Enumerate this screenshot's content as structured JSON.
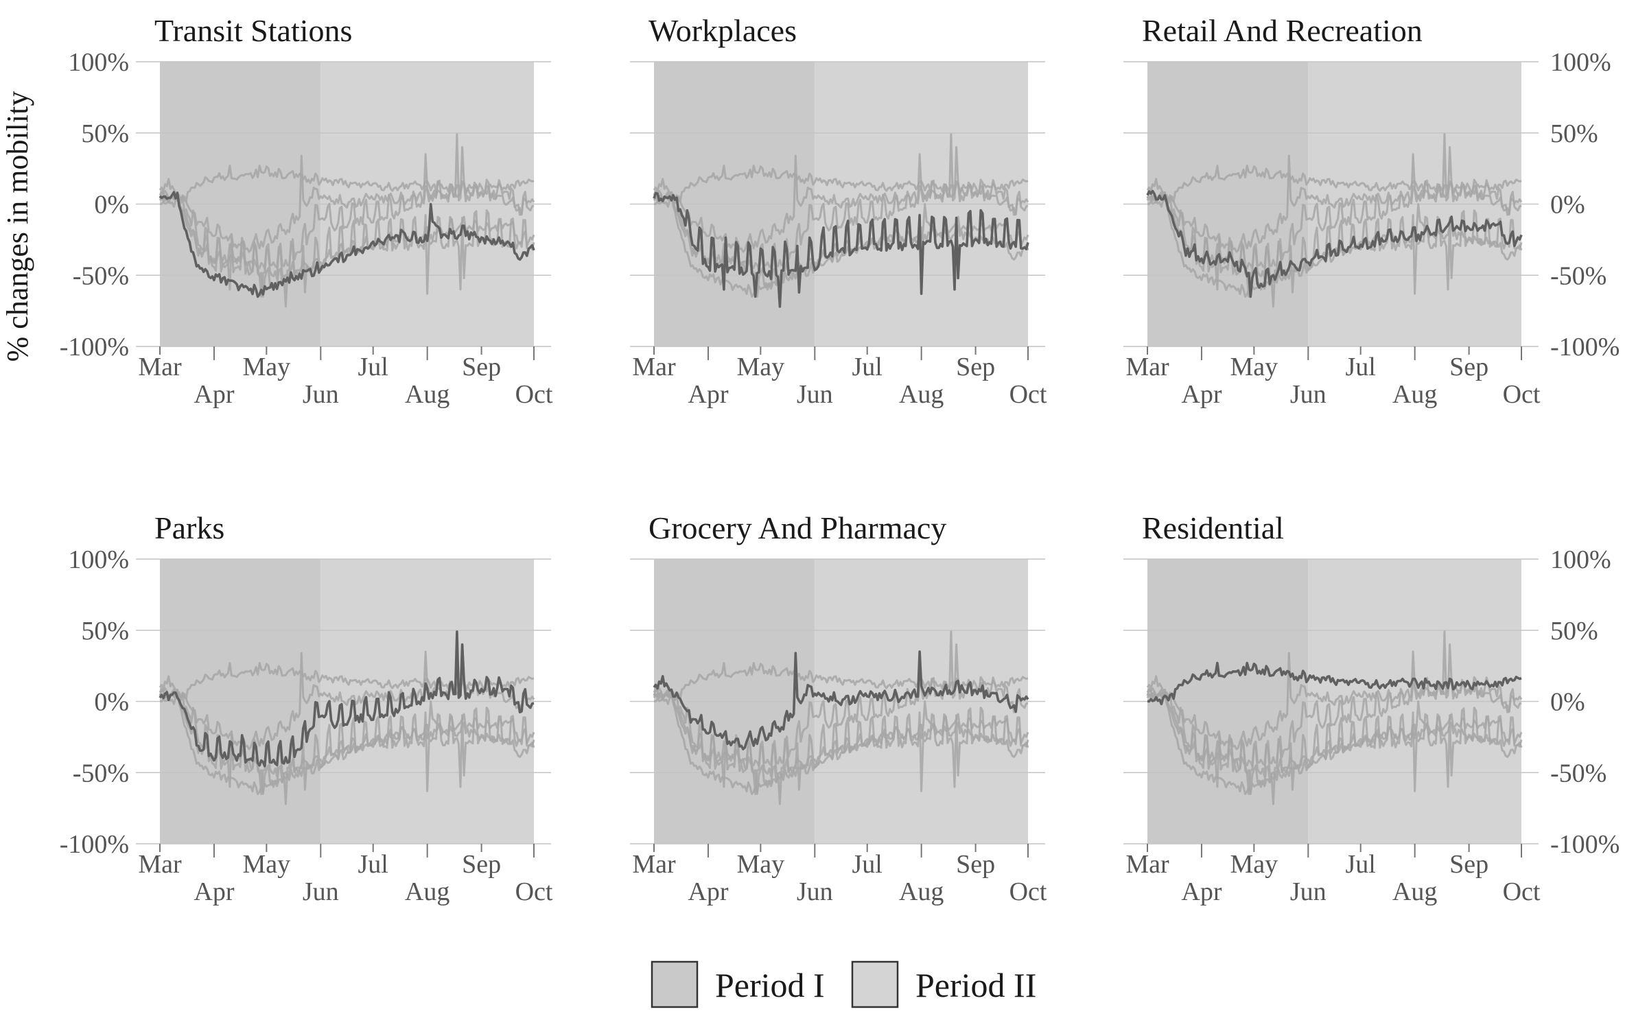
{
  "chart_data": {
    "type": "line",
    "ylabel": "% changes in mobility",
    "y_ticks": [
      "100%",
      "50%",
      "0%",
      "-50%",
      "-100%"
    ],
    "y_tick_values": [
      100,
      50,
      0,
      -50,
      -100
    ],
    "ylim": [
      -100,
      100
    ],
    "x_range_days": [
      0,
      214
    ],
    "x_ticks": [
      {
        "label": "Mar",
        "day": 0,
        "row": 0
      },
      {
        "label": "Apr",
        "day": 31,
        "row": 1
      },
      {
        "label": "May",
        "day": 61,
        "row": 0
      },
      {
        "label": "Jun",
        "day": 92,
        "row": 1
      },
      {
        "label": "Jul",
        "day": 122,
        "row": 0
      },
      {
        "label": "Aug",
        "day": 153,
        "row": 1
      },
      {
        "label": "Sep",
        "day": 184,
        "row": 0
      },
      {
        "label": "Oct",
        "day": 214,
        "row": 1
      }
    ],
    "periods": [
      {
        "name": "Period I",
        "start_day": 0,
        "end_day": 92,
        "color": "#c9c9c9"
      },
      {
        "name": "Period II",
        "start_day": 92,
        "end_day": 214,
        "color": "#d4d4d4"
      }
    ],
    "legend_position": "bottom-center",
    "grid": true,
    "colors": {
      "highlight": "#606060",
      "context": "#a6a6a6"
    },
    "panels": [
      {
        "title": "Transit Stations",
        "category": "transit",
        "y_axis_side": "left",
        "show_ylabel": true
      },
      {
        "title": "Workplaces",
        "category": "workplaces",
        "y_axis_side": "none",
        "show_ylabel": false
      },
      {
        "title": "Retail And Recreation",
        "category": "retail",
        "y_axis_side": "right",
        "show_ylabel": false
      },
      {
        "title": "Parks",
        "category": "parks",
        "y_axis_side": "left",
        "show_ylabel": false
      },
      {
        "title": "Grocery And Pharmacy",
        "category": "grocery",
        "y_axis_side": "none",
        "show_ylabel": false
      },
      {
        "title": "Residential",
        "category": "residential",
        "y_axis_side": "right",
        "show_ylabel": false
      }
    ],
    "series": [
      {
        "category": "transit",
        "points": [
          [
            0,
            7
          ],
          [
            10,
            6
          ],
          [
            15,
            -20
          ],
          [
            20,
            -40
          ],
          [
            31,
            -50
          ],
          [
            45,
            -57
          ],
          [
            55,
            -62
          ],
          [
            65,
            -57
          ],
          [
            75,
            -52
          ],
          [
            92,
            -45
          ],
          [
            110,
            -35
          ],
          [
            122,
            -28
          ],
          [
            140,
            -22
          ],
          [
            153,
            -25
          ],
          [
            155,
            -10
          ],
          [
            160,
            -22
          ],
          [
            175,
            -20
          ],
          [
            184,
            -25
          ],
          [
            200,
            -28
          ],
          [
            207,
            -38
          ],
          [
            214,
            -30
          ]
        ]
      },
      {
        "category": "workplaces",
        "points": [
          [
            0,
            5
          ],
          [
            12,
            4
          ],
          [
            18,
            -12
          ],
          [
            25,
            -30
          ],
          [
            31,
            -38
          ],
          [
            50,
            -42
          ],
          [
            70,
            -45
          ],
          [
            85,
            -40
          ],
          [
            92,
            -38
          ],
          [
            100,
            -30
          ],
          [
            122,
            -25
          ],
          [
            153,
            -23
          ],
          [
            184,
            -21
          ],
          [
            214,
            -24
          ]
        ]
      },
      {
        "category": "retail",
        "points": [
          [
            0,
            7
          ],
          [
            10,
            5
          ],
          [
            15,
            -15
          ],
          [
            22,
            -32
          ],
          [
            31,
            -38
          ],
          [
            50,
            -40
          ],
          [
            65,
            -55
          ],
          [
            75,
            -48
          ],
          [
            92,
            -40
          ],
          [
            110,
            -32
          ],
          [
            122,
            -28
          ],
          [
            140,
            -24
          ],
          [
            153,
            -22
          ],
          [
            175,
            -15
          ],
          [
            184,
            -17
          ],
          [
            200,
            -14
          ],
          [
            207,
            -28
          ],
          [
            214,
            -21
          ]
        ]
      },
      {
        "category": "parks",
        "points": [
          [
            0,
            3
          ],
          [
            10,
            5
          ],
          [
            15,
            -10
          ],
          [
            22,
            -30
          ],
          [
            31,
            -35
          ],
          [
            45,
            -35
          ],
          [
            60,
            -40
          ],
          [
            75,
            -38
          ],
          [
            85,
            -20
          ],
          [
            92,
            -5
          ],
          [
            100,
            -12
          ],
          [
            115,
            -8
          ],
          [
            130,
            -5
          ],
          [
            140,
            -3
          ],
          [
            153,
            5
          ],
          [
            160,
            8
          ],
          [
            170,
            5
          ],
          [
            184,
            10
          ],
          [
            200,
            8
          ],
          [
            207,
            -3
          ],
          [
            214,
            2
          ]
        ]
      },
      {
        "category": "grocery",
        "points": [
          [
            0,
            10
          ],
          [
            5,
            15
          ],
          [
            12,
            5
          ],
          [
            20,
            -10
          ],
          [
            31,
            -20
          ],
          [
            50,
            -30
          ],
          [
            61,
            -25
          ],
          [
            75,
            -15
          ],
          [
            80,
            -5
          ],
          [
            88,
            10
          ],
          [
            92,
            5
          ],
          [
            105,
            0
          ],
          [
            122,
            5
          ],
          [
            140,
            3
          ],
          [
            153,
            8
          ],
          [
            165,
            8
          ],
          [
            175,
            10
          ],
          [
            184,
            8
          ],
          [
            195,
            5
          ],
          [
            207,
            -3
          ],
          [
            214,
            5
          ]
        ]
      },
      {
        "category": "residential",
        "points": [
          [
            0,
            0
          ],
          [
            10,
            1
          ],
          [
            15,
            5
          ],
          [
            22,
            15
          ],
          [
            31,
            18
          ],
          [
            50,
            20
          ],
          [
            61,
            22
          ],
          [
            75,
            20
          ],
          [
            92,
            17
          ],
          [
            110,
            15
          ],
          [
            122,
            13
          ],
          [
            140,
            12
          ],
          [
            153,
            12
          ],
          [
            184,
            12
          ],
          [
            200,
            13
          ],
          [
            207,
            15
          ],
          [
            214,
            15
          ]
        ]
      }
    ],
    "spikes": [
      {
        "category": "transit",
        "day": 155,
        "value": 0
      },
      {
        "category": "workplaces",
        "day": 40,
        "value": -60
      },
      {
        "category": "workplaces",
        "day": 58,
        "value": -65
      },
      {
        "category": "workplaces",
        "day": 72,
        "value": -72
      },
      {
        "category": "workplaces",
        "day": 83,
        "value": -62
      },
      {
        "category": "workplaces",
        "day": 153,
        "value": -63
      },
      {
        "category": "workplaces",
        "day": 172,
        "value": -60
      },
      {
        "category": "workplaces",
        "day": 174,
        "value": -52
      },
      {
        "category": "retail",
        "day": 59,
        "value": -65
      },
      {
        "category": "parks",
        "day": 170,
        "value": 49
      },
      {
        "category": "parks",
        "day": 173,
        "value": 40
      },
      {
        "category": "grocery",
        "day": 81,
        "value": 34
      },
      {
        "category": "grocery",
        "day": 152,
        "value": 35
      },
      {
        "category": "residential",
        "day": 40,
        "value": 27
      },
      {
        "category": "residential",
        "day": 57,
        "value": 27
      }
    ]
  }
}
